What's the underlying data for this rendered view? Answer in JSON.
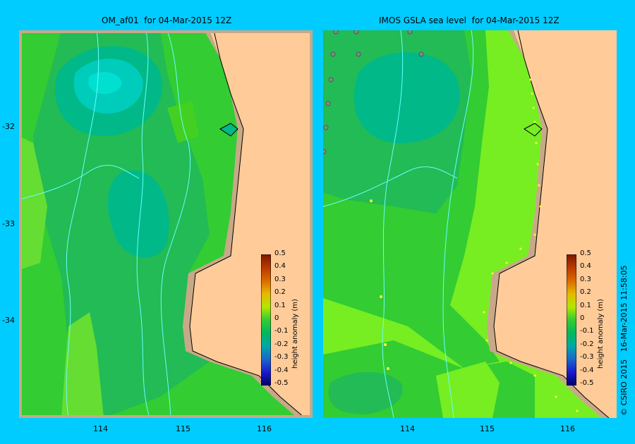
{
  "panels": [
    {
      "title": "OM_af01  for 04-Mar-2015 12Z",
      "colorbar_title": "height anomaly (m)"
    },
    {
      "title": "IMOS GSLA sea level  for 04-Mar-2015 12Z",
      "colorbar_title": "height anomaly (m)"
    }
  ],
  "x_ticks": [
    "114",
    "115",
    "116"
  ],
  "y_ticks": [
    "-32",
    "-33",
    "-34"
  ],
  "colorbar_ticks": [
    "0.5",
    "0.4",
    "0.3",
    "0.2",
    "0.1",
    "0",
    "-0.1",
    "-0.2",
    "-0.3",
    "-0.4",
    "-0.5"
  ],
  "colorbar_colors": [
    "#7a1a00",
    "#b83a00",
    "#d96a00",
    "#e6b800",
    "#b3e600",
    "#33cc33",
    "#00b85c",
    "#00a8a8",
    "#1a66cc",
    "#1a1acc",
    "#000066"
  ],
  "copyright": "© CSIRO 2015   16-Mar-2015 11:58:05",
  "colors": {
    "background": "#00ccff",
    "land": "#ffcc99",
    "shelf": "#c8a888",
    "level_0": "#33cc33",
    "level_m01": "#22bb55",
    "level_m02": "#00b888",
    "level_m03": "#00ccbb",
    "level_p01": "#77ee22"
  }
}
